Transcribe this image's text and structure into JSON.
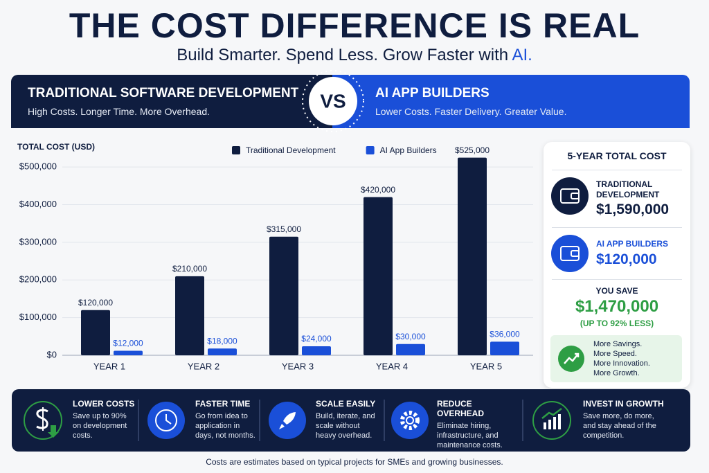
{
  "header": {
    "title": "THE COST DIFFERENCE IS REAL",
    "subtitle": "Build Smarter. Spend Less. Grow Faster with",
    "subtitle_highlight": "AI."
  },
  "comparison": {
    "left": {
      "title": "TRADITIONAL SOFTWARE DEVELOPMENT",
      "subtitle": "High Costs. Longer Time. More Overhead."
    },
    "vs": "VS",
    "right": {
      "title": "AI APP BUILDERS",
      "subtitle": "Lower Costs. Faster Delivery. Greater Value."
    }
  },
  "chart_data": {
    "type": "bar",
    "y_axis_label": "TOTAL COST (USD)",
    "categories": [
      "YEAR 1",
      "YEAR 2",
      "YEAR 3",
      "YEAR 4",
      "YEAR 5"
    ],
    "series": [
      {
        "name": "Traditional Development",
        "color": "#0f1d3f",
        "values": [
          120000,
          210000,
          315000,
          420000,
          525000
        ],
        "value_labels": [
          "$120,000",
          "$210,000",
          "$315,000",
          "$420,000",
          "$525,000"
        ]
      },
      {
        "name": "AI App Builders",
        "color": "#1a4fd8",
        "values": [
          12000,
          18000,
          24000,
          30000,
          36000
        ],
        "value_labels": [
          "$12,000",
          "$18,000",
          "$24,000",
          "$30,000",
          "$36,000"
        ]
      }
    ],
    "ylim": [
      0,
      550000
    ],
    "yticks": [
      {
        "value": 0,
        "label": "$0"
      },
      {
        "value": 100000,
        "label": "$100,000"
      },
      {
        "value": 200000,
        "label": "$200,000"
      },
      {
        "value": 300000,
        "label": "$300,000"
      },
      {
        "value": 400000,
        "label": "$400,000"
      },
      {
        "value": 500000,
        "label": "$500,000"
      }
    ],
    "grid": true,
    "legend": "top"
  },
  "summary": {
    "title": "5-YEAR TOTAL COST",
    "traditional": {
      "label": "TRADITIONAL DEVELOPMENT",
      "amount": "$1,590,000"
    },
    "ai": {
      "label": "AI APP BUILDERS",
      "amount": "$120,000"
    },
    "savings": {
      "label": "YOU SAVE",
      "amount": "$1,470,000",
      "note": "(UP TO 92% LESS)"
    },
    "benefits": [
      "More Savings.",
      "More Speed.",
      "More Innovation.",
      "More Growth."
    ]
  },
  "features": [
    {
      "title": "LOWER COSTS",
      "text": "Save up to 90% on development costs."
    },
    {
      "title": "FASTER TIME",
      "text": "Go from idea to application in days, not months."
    },
    {
      "title": "SCALE EASILY",
      "text": "Build, iterate, and scale without heavy overhead."
    },
    {
      "title": "REDUCE OVERHEAD",
      "text": "Eliminate hiring, infrastructure, and maintenance costs."
    },
    {
      "title": "INVEST IN GROWTH",
      "text": "Save more, do more, and stay ahead of the competition."
    }
  ],
  "footnote": "Costs are estimates based on typical projects for SMEs and growing businesses."
}
